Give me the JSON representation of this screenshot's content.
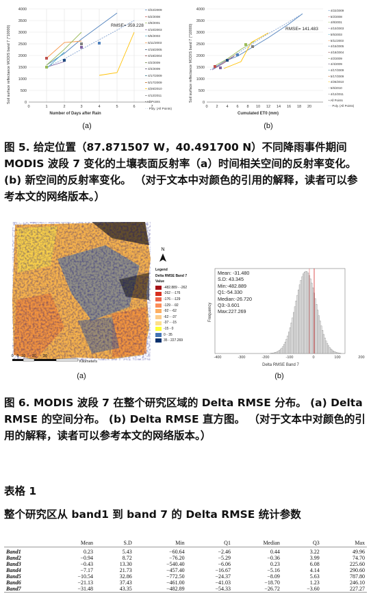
{
  "figure5": {
    "left_chart": {
      "ylabel": "Soil surface reflectance MODIS band 7 (*10000)",
      "xlabel": "Number of Days after Rain",
      "rmse": "RMSE= 359.228",
      "xticks": [
        "0",
        "1",
        "2",
        "3",
        "4",
        "5",
        "6",
        "7",
        "8"
      ],
      "yticks": [
        "0",
        "500",
        "1000",
        "1500",
        "2000",
        "2500",
        "3000",
        "3500",
        "4000"
      ]
    },
    "right_chart": {
      "ylabel": "Soil surface reflectance MODIS band 7 (*10000)",
      "xlabel": "Cumulated ET0 (mm)",
      "rmse": "RMSE= 141.483",
      "xticks": [
        "0",
        "2",
        "4",
        "6",
        "8",
        "10",
        "12",
        "14",
        "16",
        "18",
        "20"
      ],
      "yticks": [
        "0",
        "500",
        "1000",
        "1500",
        "2000",
        "2500",
        "3000",
        "3500",
        "4000"
      ]
    },
    "legend_left": [
      "4/22/2009",
      "5/2/2008",
      "4/8/2001",
      "4/10/2003",
      "5/5/2003",
      "5/11/2003",
      "4/15/2005",
      "4/18/2004",
      "4/2/2009",
      "4/4/2009",
      "4/17/2009",
      "5/17/2009",
      "4/26/2010",
      "4/12/2011",
      "All Points",
      "Poly. (All Points)"
    ],
    "legend_right": [
      "4/22/2009",
      "5/2/2008",
      "4/8/2001",
      "4/10/2003",
      "5/5/2003",
      "5/11/2003",
      "4/15/2005",
      "4/18/2004",
      "4/2/2009",
      "4/4/2009",
      "4/17/2009",
      "5/17/2009",
      "4/26/2010",
      "5/6/2010",
      "4/12/2011",
      "All Points",
      "Poly. (All Points)"
    ],
    "label_a": "(a)",
    "label_b": "(b)",
    "caption": "图 5. 给定位置（87.871507 W，40.491700 N）不同降雨事件期间 MODIS 波段 7 变化的土壤表面反射率（a）时间相关空间的反射率变化。 (b) 新空间的反射率变化。 （对于文本中对颜色的引用的解释，读者可以参考本文的网络版本。）"
  },
  "figure6": {
    "map": {
      "north": "N",
      "legend_title": "Legend",
      "legend_subtitle": "Delta RMSE Band 7",
      "legend_value": "Value",
      "classes": [
        {
          "label": "-482.889 - -262",
          "color": "#a50f15"
        },
        {
          "label": "-262 - -176",
          "color": "#d7301f"
        },
        {
          "label": "-176 - -129",
          "color": "#ef6548"
        },
        {
          "label": "-129 - -92",
          "color": "#fc8d59"
        },
        {
          "label": "-92 - -62",
          "color": "#fdae61"
        },
        {
          "label": "-62 - -37",
          "color": "#fdcc8a"
        },
        {
          "label": "-37 - -15",
          "color": "#fee08b"
        },
        {
          "label": "-15 - 0",
          "color": "#ffff33"
        },
        {
          "label": "0 - 35",
          "color": "#4575b4"
        },
        {
          "label": "35 - 227.269",
          "color": "#08306b"
        }
      ],
      "scale_ticks": [
        "0",
        "5",
        "10",
        "20",
        "30"
      ],
      "scale_unit": "Kilometers"
    },
    "histogram": {
      "ylabel": "Frequency",
      "xlabel": "Delta RMSE Band 7",
      "xticks": [
        "-400",
        "-300",
        "-200",
        "-100",
        "0",
        "100",
        "200"
      ],
      "stats": [
        "Mean: -31.480",
        "S.D: 43.345",
        "Min:-482.889",
        "Q1:-54.330",
        "Median:-26.720",
        "Q3:-3.601",
        "Max:227.269"
      ]
    },
    "label_a": "(a)",
    "label_b": "(b)",
    "caption": "图 6. MODIS 波段 7 在整个研究区域的 Delta RMSE 分布。 (a) Delta RMSE 的空间分布。 (b) Delta RMSE 直方图。 （对于文本中对颜色的引用的解释，读者可以参考本文的网络版本。）"
  },
  "table1": {
    "heading": "表格 1",
    "title": "整个研究区从 band1 到 band 7 的 Delta RMSE 统计参数",
    "columns": [
      "",
      "Mean",
      "S.D",
      "Min",
      "Q1",
      "Median",
      "Q3",
      "Max"
    ],
    "rows": [
      [
        "Band1",
        "0.23",
        "5.43",
        "−60.64",
        "−2.46",
        "0.44",
        "3.22",
        "49.96"
      ],
      [
        "Band2",
        "−0.94",
        "8.72",
        "−76.20",
        "−5.29",
        "−0.36",
        "3.99",
        "74.70"
      ],
      [
        "Band3",
        "−0.43",
        "13.30",
        "−540.40",
        "−6.06",
        "0.23",
        "6.08",
        "225.60"
      ],
      [
        "Band4",
        "−7.17",
        "21.73",
        "−457.40",
        "−16.67",
        "−5.16",
        "4.14",
        "290.60"
      ],
      [
        "Band5",
        "−10.54",
        "32.86",
        "−772.50",
        "−24.37",
        "−8.09",
        "5.63",
        "787.80"
      ],
      [
        "Band6",
        "−21.13",
        "37.43",
        "−461.00",
        "−41.03",
        "−18.70",
        "1.23",
        "246.10"
      ],
      [
        "Band7",
        "−31.48",
        "43.35",
        "−482.89",
        "−54.33",
        "−26.72",
        "−3.60",
        "227.27"
      ]
    ]
  }
}
